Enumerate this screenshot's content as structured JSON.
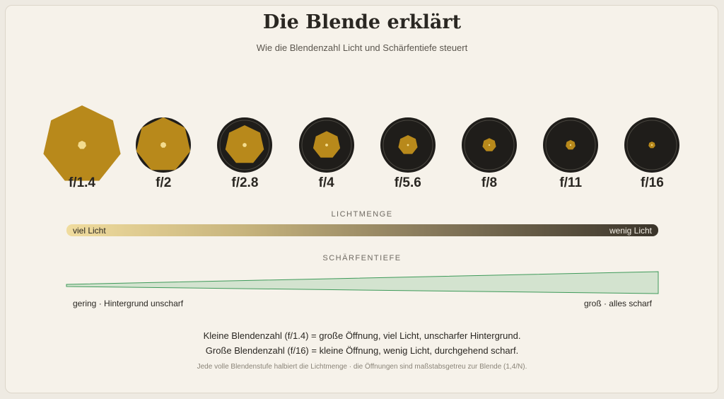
{
  "header": {
    "title": "Die Blende erklärt",
    "subtitle": "Wie die Blendenzahl Licht und Schärfentiefe steuert"
  },
  "apertures": [
    {
      "label": "f/1.4",
      "n": 1.4
    },
    {
      "label": "f/2",
      "n": 2
    },
    {
      "label": "f/2.8",
      "n": 2.8
    },
    {
      "label": "f/4",
      "n": 4
    },
    {
      "label": "f/5.6",
      "n": 5.6
    },
    {
      "label": "f/8",
      "n": 8
    },
    {
      "label": "f/11",
      "n": 11
    },
    {
      "label": "f/16",
      "n": 16
    }
  ],
  "light": {
    "heading": "LICHTMENGE",
    "left": "viel Licht",
    "right": "wenig Licht"
  },
  "depth": {
    "heading": "SCHÄRFENTIEFE",
    "left": "gering · Hintergrund unscharf",
    "right": "groß · alles scharf"
  },
  "notes": {
    "line1": "Kleine Blendenzahl (f/1.4) = große Öffnung, viel Licht, unscharfer Hintergrund.",
    "line2": "Große Blendenzahl (f/16) = kleine Öffnung, wenig Licht, durchgehend scharf.",
    "footnote": "Jede volle Blendenstufe halbiert die Lichtmenge · die Öffnungen sind maßstabsgetreu zur Blende (1,4/N)."
  },
  "colors": {
    "blade_fill": "#1f1d1a",
    "aperture_gold": "#b8891b",
    "center_dot": "#f3dc8f",
    "ring": "#4a4740",
    "depth_fill": "#d3e3cf",
    "depth_stroke": "#3f9a5a"
  }
}
